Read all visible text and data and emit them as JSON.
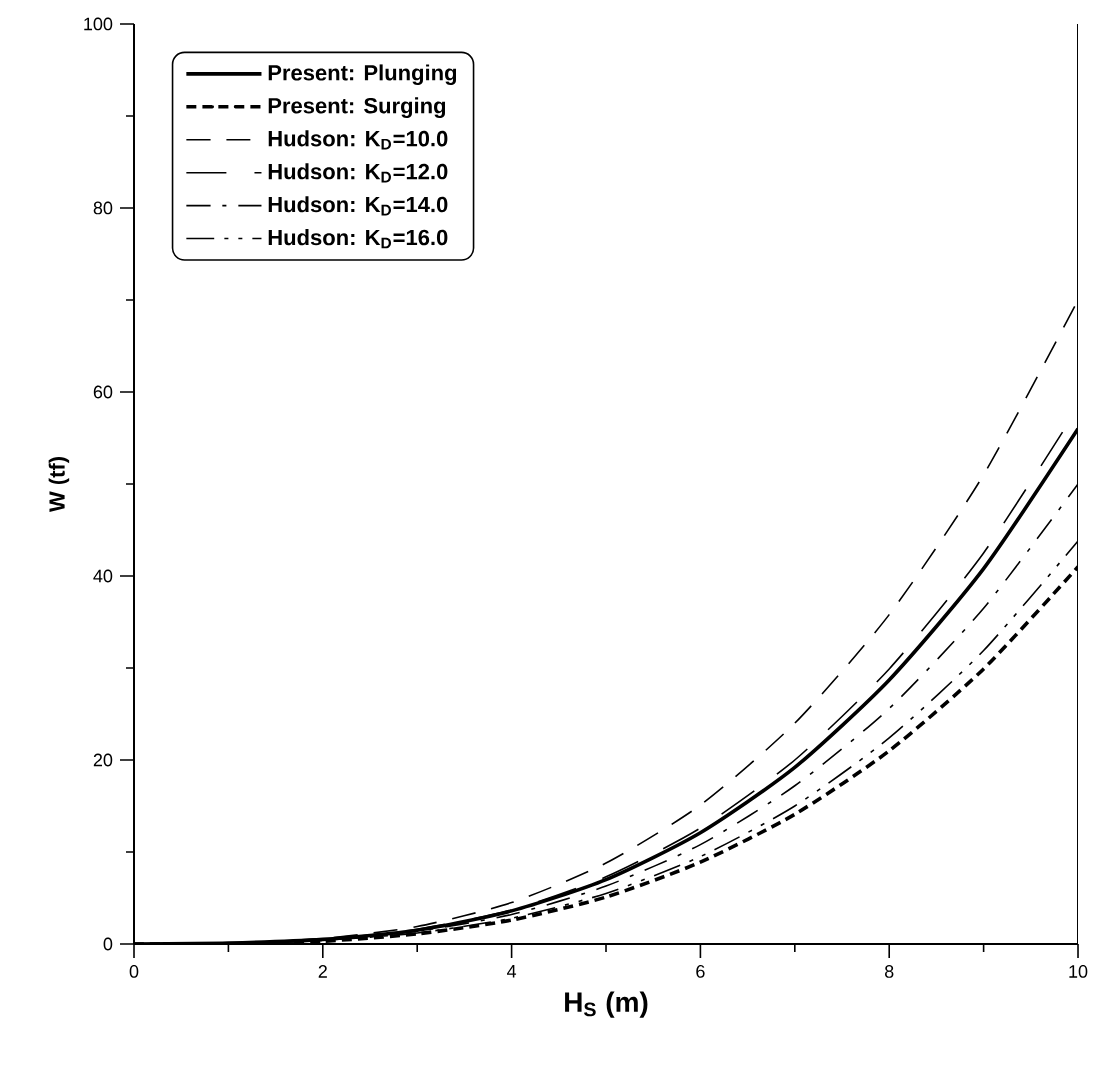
{
  "chart_data": {
    "type": "line",
    "xlabel": "H$_{S}$ (m)",
    "ylabel": "W (tf)",
    "xlim": [
      0,
      10
    ],
    "ylim": [
      0,
      100
    ],
    "xticks": [
      0,
      2,
      4,
      6,
      8,
      10
    ],
    "yticks": [
      0,
      20,
      40,
      60,
      80,
      100
    ],
    "x": [
      0,
      1,
      2,
      3,
      4,
      5,
      6,
      7,
      8,
      9,
      10
    ],
    "legend": "top left",
    "grid": false,
    "marker": "none",
    "series": [
      {
        "name": "Present: Plunging",
        "color": "#000000",
        "line_style": "solid",
        "values": [
          0,
          0.1,
          0.5,
          1.5,
          3.6,
          7.0,
          12.1,
          19.2,
          28.7,
          40.8,
          56
        ]
      },
      {
        "name": "Present: Surging",
        "color": "#000000",
        "line_style": "dashed",
        "values": [
          0,
          0.0,
          0.3,
          1.1,
          2.6,
          5.1,
          8.9,
          14.1,
          21.0,
          29.9,
          41
        ]
      },
      {
        "name": "Hudson: K$_{D}$=10.0",
        "color": "#000000",
        "line_style": "dashed",
        "values": [
          0,
          0.1,
          0.6,
          1.9,
          4.5,
          8.8,
          15.1,
          24.0,
          35.8,
          51.0,
          70
        ]
      },
      {
        "name": "Hudson: K$_{D}$=12.0",
        "color": "#000000",
        "line_style": "dashed",
        "values": [
          0,
          0.1,
          0.5,
          1.6,
          3.7,
          7.3,
          12.6,
          20.0,
          29.9,
          42.5,
          58.3
        ]
      },
      {
        "name": "Hudson: K$_{D}$=14.0",
        "color": "#000000",
        "line_style": "dashed",
        "values": [
          0,
          0.1,
          0.4,
          1.4,
          3.2,
          6.3,
          10.8,
          17.2,
          25.6,
          36.5,
          50
        ]
      },
      {
        "name": "Hudson: K$_{D}$=16.0",
        "color": "#000000",
        "line_style": "dashed",
        "values": [
          0,
          0.0,
          0.4,
          1.2,
          2.8,
          5.5,
          9.5,
          15.0,
          22.4,
          31.9,
          43.8
        ]
      }
    ]
  }
}
